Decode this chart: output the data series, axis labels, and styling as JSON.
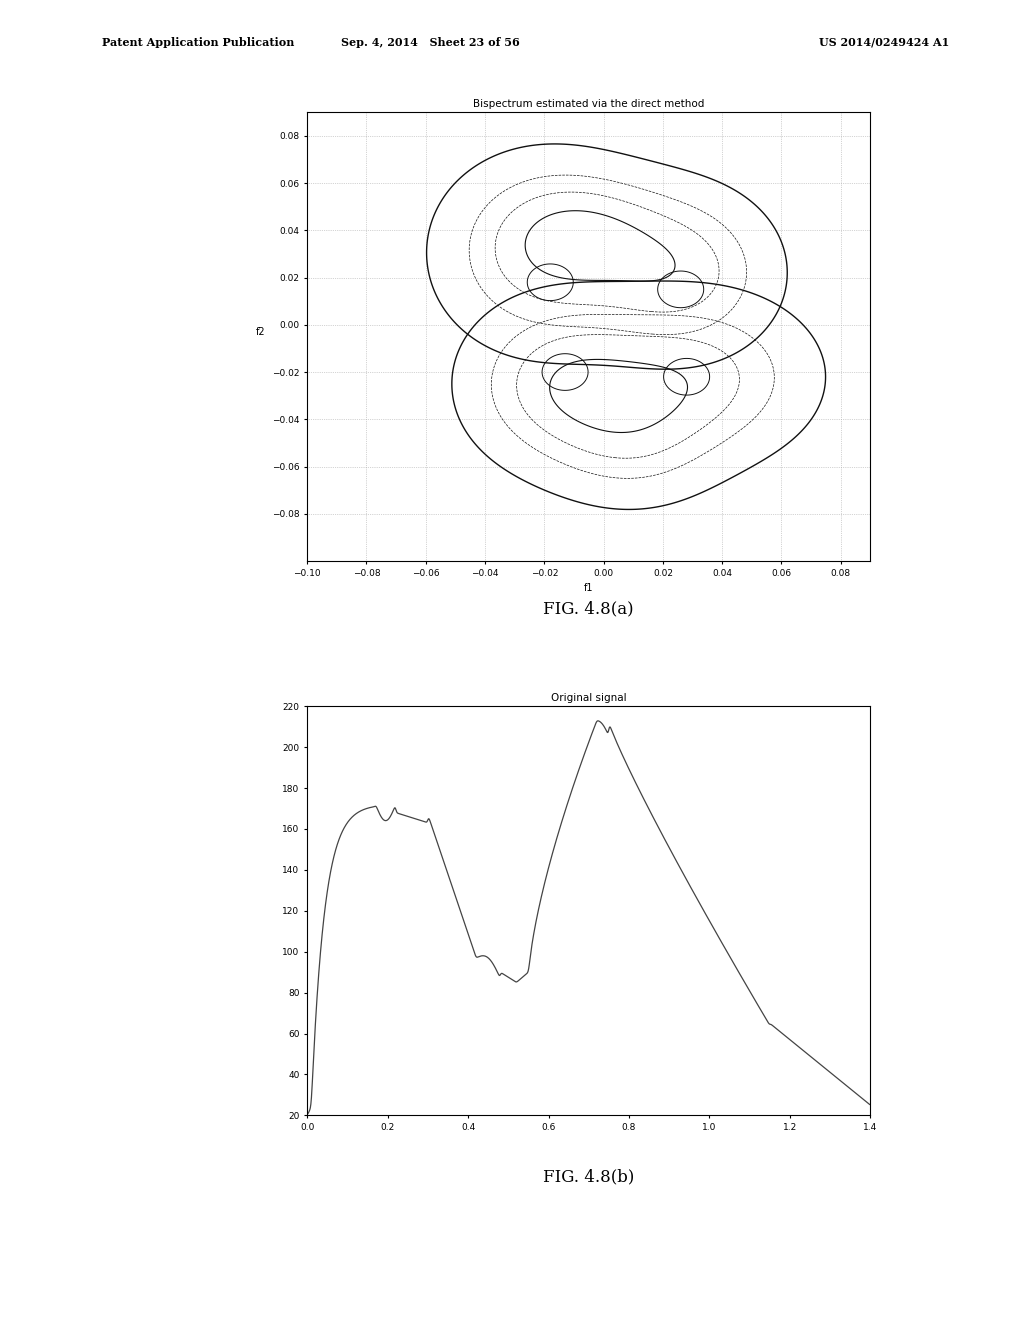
{
  "fig_width": 10.24,
  "fig_height": 13.2,
  "bg_color": "#ffffff",
  "header_left": "Patent Application Publication",
  "header_mid": "Sep. 4, 2014   Sheet 23 of 56",
  "header_right": "US 2014/0249424 A1",
  "plot1": {
    "title": "Bispectrum estimated via the direct method",
    "xlabel": "f1",
    "ylabel": "f2",
    "xlim": [
      -0.1,
      0.09
    ],
    "ylim": [
      -0.1,
      0.09
    ],
    "xticks": [
      -0.1,
      -0.08,
      -0.06,
      -0.04,
      -0.02,
      0,
      0.02,
      0.04,
      0.06,
      0.08
    ],
    "yticks": [
      -0.08,
      -0.06,
      -0.04,
      -0.02,
      0,
      0.02,
      0.04,
      0.06,
      0.08
    ],
    "caption": "FIG. 4.8(a)"
  },
  "plot2": {
    "title": "Original signal",
    "xlim": [
      0,
      1.4
    ],
    "ylim": [
      20,
      220
    ],
    "xticks": [
      0,
      0.2,
      0.4,
      0.6,
      0.8,
      1.0,
      1.2,
      1.4
    ],
    "yticks": [
      20,
      40,
      60,
      80,
      100,
      120,
      140,
      160,
      180,
      200,
      220
    ],
    "caption": "FIG. 4.8(b)"
  }
}
